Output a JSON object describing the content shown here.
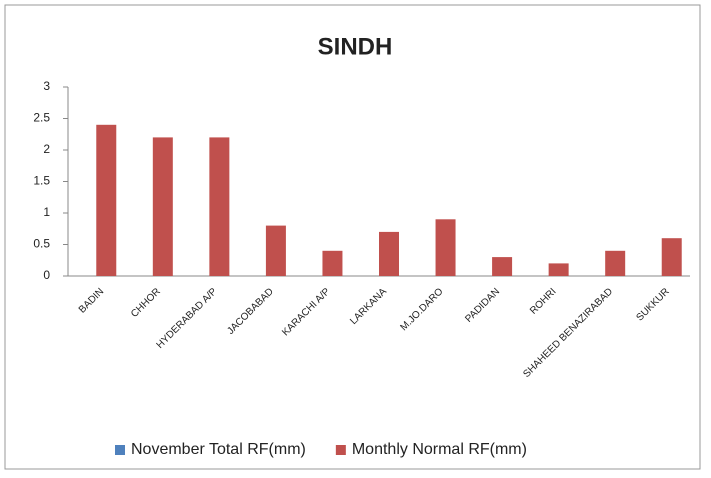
{
  "chart_data": {
    "type": "bar",
    "title": "SINDH",
    "categories": [
      "BADIN",
      "CHHOR",
      "HYDERABAD A/P",
      "JACOBABAD",
      "KARACHI A/P",
      "LARKANA",
      "M.JO.DARO",
      "PADIDAN",
      "ROHRI",
      "SHAHEED BENAZIRABAD",
      "SUKKUR"
    ],
    "series": [
      {
        "name": "November Total RF(mm)",
        "color": "#4f81bd",
        "values": [
          0,
          0,
          0,
          0,
          0,
          0,
          0,
          0,
          0,
          0,
          0
        ]
      },
      {
        "name": "Monthly Normal RF(mm)",
        "color": "#c0504d",
        "values": [
          2.4,
          2.2,
          2.2,
          0.8,
          0.4,
          0.7,
          0.9,
          0.3,
          0.2,
          0.4,
          0.6
        ]
      }
    ],
    "ylim": [
      0,
      3
    ],
    "yticks": [
      0,
      0.5,
      1,
      1.5,
      2,
      2.5,
      3
    ],
    "grid": false,
    "legend": "bottom"
  }
}
